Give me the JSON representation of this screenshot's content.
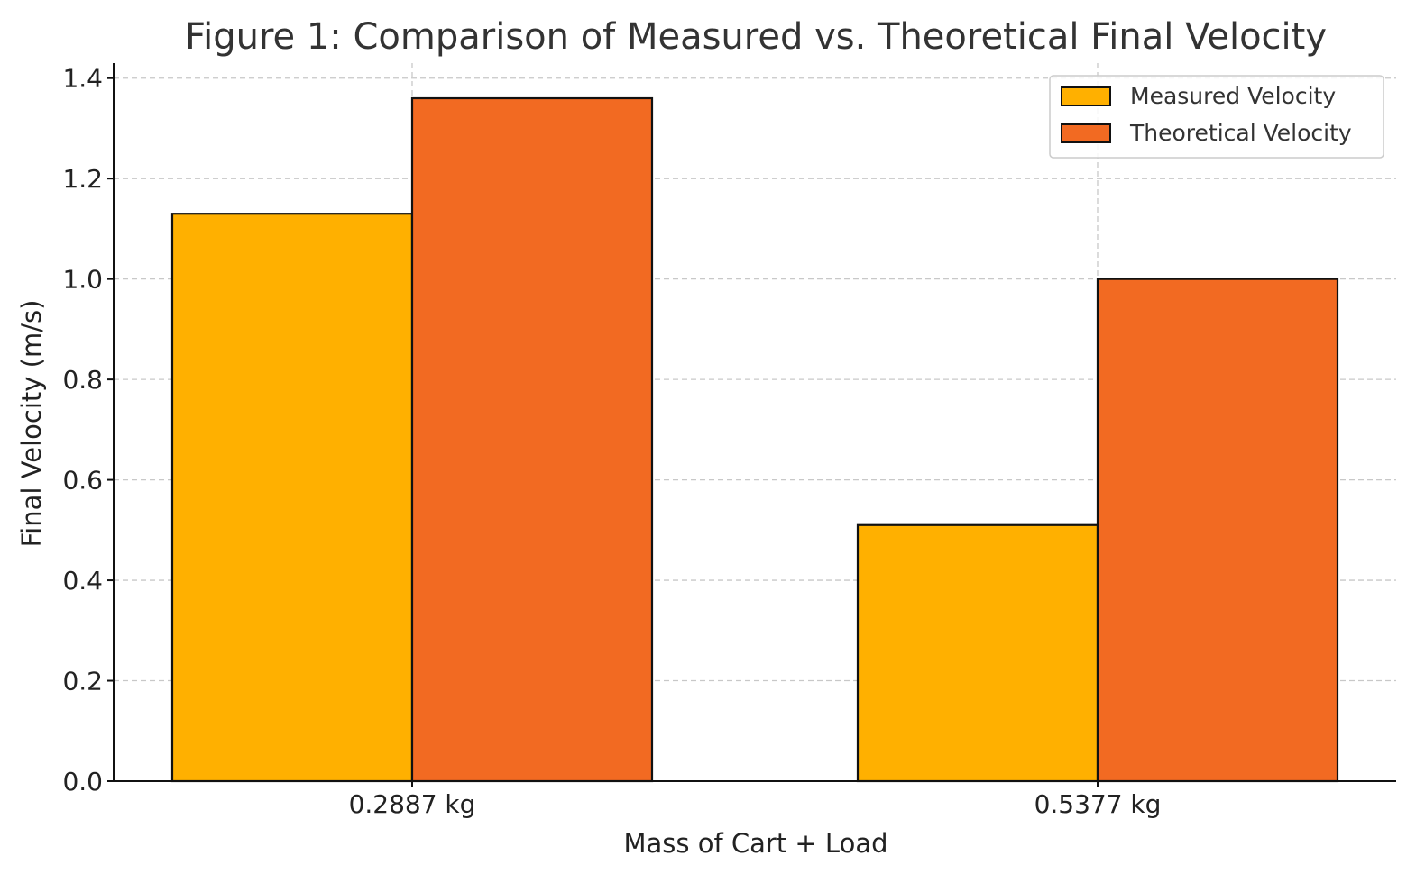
{
  "chart_data": {
    "type": "bar",
    "title": "Figure 1: Comparison of Measured vs. Theoretical Final Velocity",
    "xlabel": "Mass of Cart + Load",
    "ylabel": "Final Velocity (m/s)",
    "categories": [
      "0.2887 kg",
      "0.5377 kg"
    ],
    "series": [
      {
        "name": "Measured Velocity",
        "values": [
          1.13,
          0.51
        ],
        "color": "#FFB000"
      },
      {
        "name": "Theoretical Velocity",
        "values": [
          1.36,
          1.0
        ],
        "color": "#F26A22"
      }
    ],
    "ylim": [
      0,
      1.43
    ],
    "yticks": [
      0.0,
      0.2,
      0.4,
      0.6,
      0.8,
      1.0,
      1.2,
      1.4
    ],
    "ytick_labels": [
      "0.0",
      "0.2",
      "0.4",
      "0.6",
      "0.8",
      "1.0",
      "1.2",
      "1.4"
    ],
    "grid": true,
    "legend_position": "top-right"
  }
}
